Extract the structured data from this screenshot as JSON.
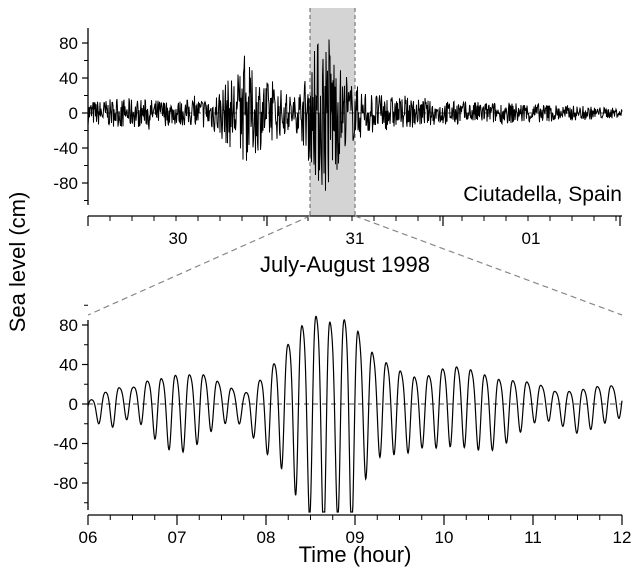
{
  "shared": {
    "ylabel": "Sea level  (cm)"
  },
  "chart_data": [
    {
      "type": "line",
      "panel": "top",
      "annotation": "Ciutadella, Spain",
      "xlabel": "July-August 1998",
      "ylabel": "Sea level  (cm)",
      "x_tick_labels": [
        "30",
        "31",
        "01"
      ],
      "y_ticks": [
        80,
        40,
        0,
        -40,
        -80
      ],
      "ylim": [
        -110,
        110
      ],
      "highlight_window": "30/31 July, approx. 06:00-12:00 on 31 July",
      "baseline": 0,
      "grid": false,
      "series": [
        {
          "description_values": "Sea-level record with background oscillations of about ±15 cm, bursts up to about ±60 cm late on 30 July, and a large event peaking near +105 cm / -105 cm on 31 July",
          "envelope_points": [
            {
              "day": "29.8",
              "amp": 15
            },
            {
              "day": "30.0",
              "amp": 18
            },
            {
              "day": "30.2",
              "amp": 15
            },
            {
              "day": "30.4",
              "amp": 20
            },
            {
              "day": "30.6",
              "amp": 60
            },
            {
              "day": "30.7",
              "amp": 40
            },
            {
              "day": "30.8",
              "amp": 20
            },
            {
              "day": "31.0",
              "amp": 50
            },
            {
              "day": "31.05",
              "amp": 90
            },
            {
              "day": "31.1",
              "amp": 105
            },
            {
              "day": "31.15",
              "amp": 75
            },
            {
              "day": "31.2",
              "amp": 40
            },
            {
              "day": "31.4",
              "amp": 22
            },
            {
              "day": "31.6",
              "amp": 15
            },
            {
              "day": "01.0",
              "amp": 12
            },
            {
              "day": "01.2",
              "amp": 6
            }
          ]
        }
      ]
    },
    {
      "type": "line",
      "panel": "bottom",
      "xlabel": "Time  (hour)",
      "ylabel": "Sea level  (cm)",
      "x_ticks": [
        "06",
        "07",
        "08",
        "09",
        "10",
        "11",
        "12"
      ],
      "xlim": [
        6,
        12
      ],
      "y_ticks": [
        80,
        40,
        0,
        -40,
        -80
      ],
      "ylim": [
        -115,
        115
      ],
      "baseline": 0,
      "grid": false,
      "series": [
        {
          "x": [
            6.0,
            6.25,
            6.5,
            6.75,
            7.0,
            7.25,
            7.5,
            7.75,
            8.0,
            8.2,
            8.35,
            8.5,
            8.6,
            8.65,
            8.7,
            8.8,
            8.9,
            8.95,
            9.0,
            9.1,
            9.25,
            9.5,
            9.75,
            10.0,
            10.25,
            10.5,
            10.75,
            11.0,
            11.25,
            11.5,
            11.75,
            12.0
          ],
          "y_amplitude": [
            8,
            20,
            15,
            30,
            40,
            35,
            20,
            15,
            40,
            60,
            85,
            100,
            110,
            112,
            105,
            95,
            108,
            115,
            95,
            70,
            50,
            42,
            35,
            40,
            40,
            38,
            30,
            20,
            15,
            22,
            20,
            15
          ]
        }
      ]
    }
  ]
}
